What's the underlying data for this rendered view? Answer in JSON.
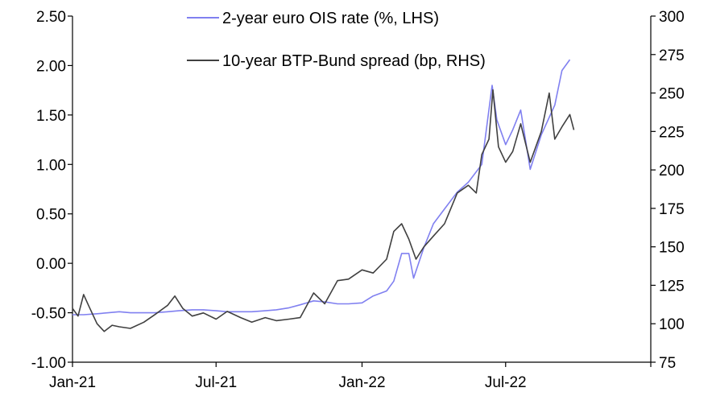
{
  "chart_data": {
    "type": "line",
    "title": "",
    "xlabel": "",
    "ylabel_left": "",
    "ylabel_right": "",
    "x_ticks": [
      "Jan-21",
      "Jul-21",
      "Jan-22",
      "Jul-22"
    ],
    "x_range": [
      "2021-01-01",
      "2022-12-31"
    ],
    "y_left": {
      "range": [
        -1.0,
        2.5
      ],
      "ticks": [
        -1.0,
        -0.5,
        0.0,
        0.5,
        1.0,
        1.5,
        2.0,
        2.5
      ],
      "tick_labels": [
        "-1.00",
        "-0.50",
        "0.00",
        "0.50",
        "1.00",
        "1.50",
        "2.00",
        "2.50"
      ]
    },
    "y_right": {
      "range": [
        75,
        300
      ],
      "ticks": [
        75,
        100,
        125,
        150,
        175,
        200,
        225,
        250,
        275,
        300
      ],
      "tick_labels": [
        "75",
        "100",
        "125",
        "150",
        "175",
        "200",
        "225",
        "250",
        "275",
        "300"
      ]
    },
    "grid": false,
    "legend_position": "top-center",
    "series": [
      {
        "name": "2-year euro OIS rate (%, LHS)",
        "axis": "left",
        "color": "#8080f0",
        "points": [
          [
            "2021-01-01",
            -0.52
          ],
          [
            "2021-01-15",
            -0.52
          ],
          [
            "2021-02-01",
            -0.51
          ],
          [
            "2021-02-15",
            -0.5
          ],
          [
            "2021-03-01",
            -0.49
          ],
          [
            "2021-03-15",
            -0.5
          ],
          [
            "2021-04-01",
            -0.5
          ],
          [
            "2021-04-15",
            -0.5
          ],
          [
            "2021-05-01",
            -0.49
          ],
          [
            "2021-05-15",
            -0.48
          ],
          [
            "2021-06-01",
            -0.47
          ],
          [
            "2021-06-15",
            -0.47
          ],
          [
            "2021-07-01",
            -0.48
          ],
          [
            "2021-07-15",
            -0.49
          ],
          [
            "2021-08-01",
            -0.49
          ],
          [
            "2021-08-15",
            -0.49
          ],
          [
            "2021-09-01",
            -0.48
          ],
          [
            "2021-09-15",
            -0.47
          ],
          [
            "2021-10-01",
            -0.45
          ],
          [
            "2021-10-15",
            -0.42
          ],
          [
            "2021-11-01",
            -0.38
          ],
          [
            "2021-11-15",
            -0.39
          ],
          [
            "2021-12-01",
            -0.41
          ],
          [
            "2021-12-15",
            -0.41
          ],
          [
            "2022-01-01",
            -0.4
          ],
          [
            "2022-01-15",
            -0.33
          ],
          [
            "2022-02-01",
            -0.28
          ],
          [
            "2022-02-10",
            -0.18
          ],
          [
            "2022-02-20",
            0.1
          ],
          [
            "2022-03-01",
            0.1
          ],
          [
            "2022-03-07",
            -0.15
          ],
          [
            "2022-03-20",
            0.16
          ],
          [
            "2022-04-01",
            0.4
          ],
          [
            "2022-04-15",
            0.55
          ],
          [
            "2022-05-01",
            0.72
          ],
          [
            "2022-05-15",
            0.82
          ],
          [
            "2022-06-01",
            1.0
          ],
          [
            "2022-06-14",
            1.8
          ],
          [
            "2022-06-20",
            1.45
          ],
          [
            "2022-07-01",
            1.2
          ],
          [
            "2022-07-10",
            1.35
          ],
          [
            "2022-07-20",
            1.55
          ],
          [
            "2022-08-01",
            0.95
          ],
          [
            "2022-08-15",
            1.3
          ],
          [
            "2022-09-01",
            1.6
          ],
          [
            "2022-09-10",
            1.95
          ],
          [
            "2022-09-20",
            2.06
          ]
        ]
      },
      {
        "name": "10-year BTP-Bund spread (bp, RHS)",
        "axis": "right",
        "color": "#404040",
        "points": [
          [
            "2021-01-01",
            110
          ],
          [
            "2021-01-08",
            105
          ],
          [
            "2021-01-15",
            119
          ],
          [
            "2021-01-22",
            111
          ],
          [
            "2021-02-01",
            100
          ],
          [
            "2021-02-10",
            95
          ],
          [
            "2021-02-20",
            99
          ],
          [
            "2021-03-01",
            98
          ],
          [
            "2021-03-15",
            97
          ],
          [
            "2021-04-01",
            101
          ],
          [
            "2021-04-15",
            106
          ],
          [
            "2021-05-01",
            112
          ],
          [
            "2021-05-10",
            118
          ],
          [
            "2021-05-20",
            110
          ],
          [
            "2021-06-01",
            105
          ],
          [
            "2021-06-15",
            107
          ],
          [
            "2021-07-01",
            103
          ],
          [
            "2021-07-15",
            108
          ],
          [
            "2021-08-01",
            104
          ],
          [
            "2021-08-15",
            101
          ],
          [
            "2021-09-01",
            104
          ],
          [
            "2021-09-15",
            102
          ],
          [
            "2021-10-01",
            103
          ],
          [
            "2021-10-15",
            104
          ],
          [
            "2021-11-01",
            120
          ],
          [
            "2021-11-15",
            113
          ],
          [
            "2021-12-01",
            128
          ],
          [
            "2021-12-15",
            129
          ],
          [
            "2022-01-01",
            135
          ],
          [
            "2022-01-15",
            133
          ],
          [
            "2022-02-01",
            142
          ],
          [
            "2022-02-10",
            160
          ],
          [
            "2022-02-20",
            165
          ],
          [
            "2022-03-01",
            155
          ],
          [
            "2022-03-10",
            142
          ],
          [
            "2022-03-20",
            150
          ],
          [
            "2022-04-01",
            157
          ],
          [
            "2022-04-15",
            165
          ],
          [
            "2022-05-01",
            185
          ],
          [
            "2022-05-15",
            190
          ],
          [
            "2022-05-25",
            185
          ],
          [
            "2022-06-01",
            210
          ],
          [
            "2022-06-10",
            220
          ],
          [
            "2022-06-15",
            252
          ],
          [
            "2022-06-22",
            215
          ],
          [
            "2022-07-01",
            205
          ],
          [
            "2022-07-10",
            212
          ],
          [
            "2022-07-20",
            230
          ],
          [
            "2022-08-01",
            205
          ],
          [
            "2022-08-15",
            225
          ],
          [
            "2022-08-25",
            250
          ],
          [
            "2022-09-01",
            220
          ],
          [
            "2022-09-10",
            228
          ],
          [
            "2022-09-20",
            236
          ],
          [
            "2022-09-25",
            226
          ]
        ]
      }
    ]
  }
}
